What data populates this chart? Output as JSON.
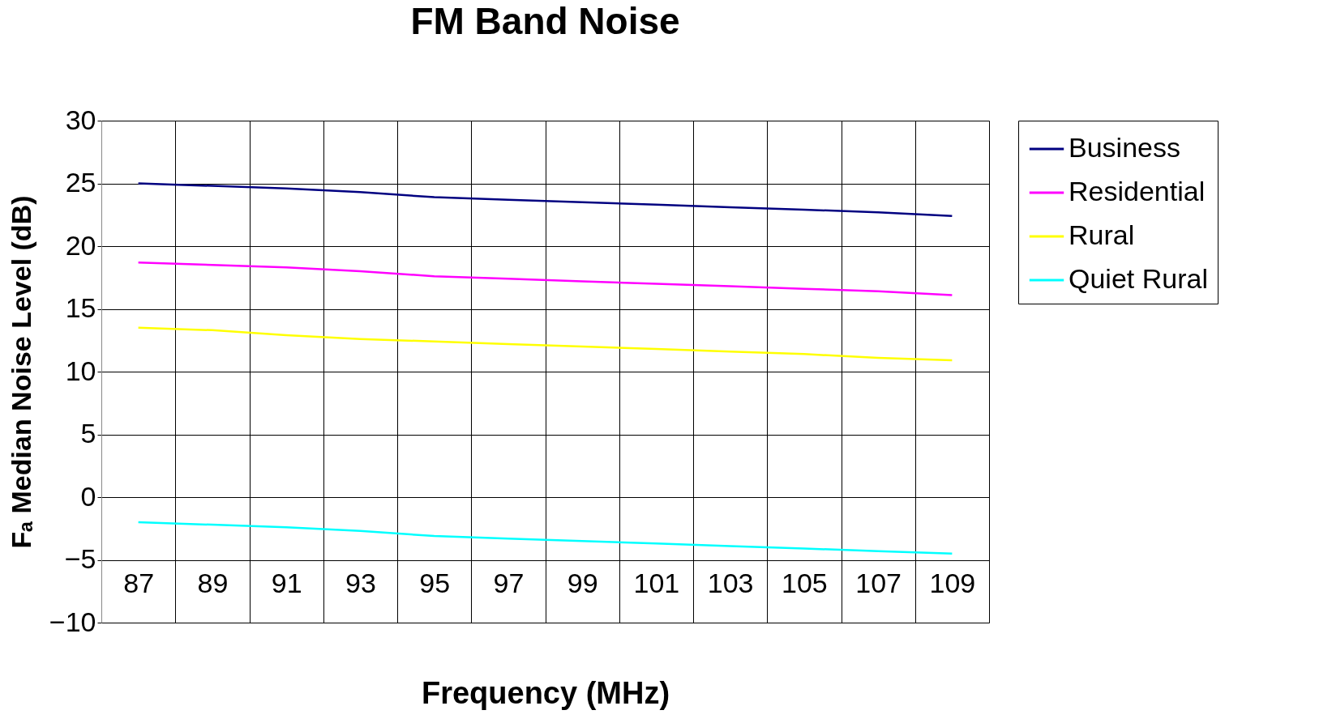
{
  "chart_data": {
    "type": "line",
    "title": "FM Band Noise",
    "xlabel": "Frequency (MHz)",
    "ylabel": "Fₐ Median Noise Level (dB)",
    "categories": [
      "87",
      "89",
      "91",
      "93",
      "95",
      "97",
      "99",
      "101",
      "103",
      "105",
      "107",
      "109"
    ],
    "series": [
      {
        "name": "Business",
        "color": "#000080",
        "values": [
          25.0,
          24.8,
          24.6,
          24.3,
          23.9,
          23.7,
          23.5,
          23.3,
          23.1,
          22.9,
          22.7,
          22.4
        ]
      },
      {
        "name": "Residential",
        "color": "#ff00ff",
        "values": [
          18.7,
          18.5,
          18.3,
          18.0,
          17.6,
          17.4,
          17.2,
          17.0,
          16.8,
          16.6,
          16.4,
          16.1
        ]
      },
      {
        "name": "Rural",
        "color": "#ffff00",
        "values": [
          13.5,
          13.3,
          12.9,
          12.6,
          12.4,
          12.2,
          12.0,
          11.8,
          11.6,
          11.4,
          11.1,
          10.9
        ]
      },
      {
        "name": "Quiet Rural",
        "color": "#00ffff",
        "values": [
          -2.0,
          -2.2,
          -2.4,
          -2.7,
          -3.1,
          -3.3,
          -3.5,
          -3.7,
          -3.9,
          -4.1,
          -4.3,
          -4.5
        ]
      }
    ],
    "ylim": [
      -10,
      30
    ],
    "yticks": [
      -10,
      -5,
      0,
      5,
      10,
      15,
      20,
      25,
      30
    ],
    "grid": true,
    "legend": "right",
    "marker": "none",
    "line_style": "solid"
  }
}
